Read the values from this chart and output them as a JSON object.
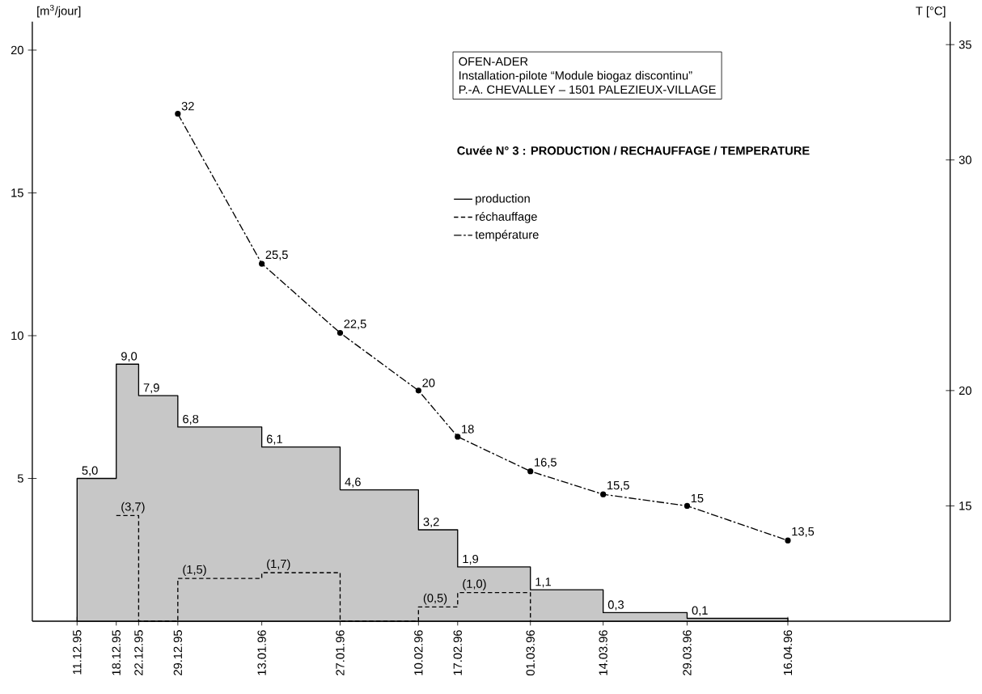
{
  "chart_data": {
    "type": "area",
    "title": "**Cuvée N° 3 :  PRODUCTION / RECHAUFFAGE / TEMPERATURE**",
    "ylabel": "[m$^{3}$/jour]",
    "y2label": "T [°C]",
    "annotations": [
      "OFEN-ADER",
      "Installation-pilote “Module biogaz discontinu”",
      "P.-A. CHEVALLEY – 1501 PALEZIEUX-VILLAGE"
    ],
    "xlim": [
      "1995-12-03",
      "1996-05-15"
    ],
    "xticks": [
      {
        "value": "1995-12-11",
        "label": "11.12.95"
      },
      {
        "value": "1995-12-18",
        "label": "18.12.95"
      },
      {
        "value": "1995-12-22",
        "label": "22.12.95"
      },
      {
        "value": "1995-12-29",
        "label": "29.12.95"
      },
      {
        "value": "1996-01-13",
        "label": "13.01.96"
      },
      {
        "value": "1996-01-27",
        "label": "27.01.96"
      },
      {
        "value": "1996-02-10",
        "label": "10.02.96"
      },
      {
        "value": "1996-02-17",
        "label": "17.02.96"
      },
      {
        "value": "1996-03-01",
        "label": "01.03.96"
      },
      {
        "value": "1996-03-14",
        "label": "14.03.96"
      },
      {
        "value": "1996-03-29",
        "label": "29.03.96"
      },
      {
        "value": "1996-04-16",
        "label": "16.04.96"
      }
    ],
    "ylim": [
      0,
      21
    ],
    "yticks": [
      5,
      10,
      15,
      20
    ],
    "y2lim": [
      10,
      36
    ],
    "y2ticks": [
      15,
      20,
      30,
      35
    ],
    "legend": "top right",
    "series": [
      {
        "name": "production",
        "color": "#000000",
        "line_style": "solid",
        "x": [
          "1995-12-11",
          "1995-12-18",
          "1995-12-22",
          "1995-12-29",
          "1996-01-13",
          "1996-01-27",
          "1996-02-10",
          "1996-02-17",
          "1996-03-01",
          "1996-03-14",
          "1996-03-29",
          "1996-04-16"
        ],
        "values": [
          5.0,
          9.0,
          7.9,
          6.8,
          6.1,
          4.6,
          3.2,
          1.9,
          1.1,
          0.3,
          0.1,
          0
        ],
        "value_labels": [
          "5,0",
          "9,0",
          "7,9",
          "6,8",
          "6,1",
          "4,6",
          "3,2",
          "1,9",
          "1,1",
          "0,3",
          "0,1",
          null
        ]
      },
      {
        "name": "réchauffage",
        "type": "step",
        "color": "#000000",
        "line_style": "dashed",
        "x": [
          "1995-12-18",
          "1995-12-22",
          "1995-12-29",
          "1996-01-13",
          "1996-01-27",
          "1996-02-10",
          "1996-02-17",
          "1996-03-01"
        ],
        "values": [
          3.7,
          0,
          1.5,
          1.7,
          0,
          0.5,
          1.0,
          0
        ],
        "value_labels": [
          "(3,7)",
          null,
          "(1,5)",
          "(1,7)",
          null,
          "(0,5)",
          "(1,0)",
          null
        ]
      },
      {
        "name": "température",
        "type": "line",
        "axis": "y2",
        "color": "#000000",
        "line_style": "dashdot",
        "marker": "circle",
        "x": [
          "1995-12-29",
          "1996-01-13",
          "1996-01-27",
          "1996-02-10",
          "1996-02-17",
          "1996-03-01",
          "1996-03-14",
          "1996-03-29",
          "1996-04-16"
        ],
        "values": [
          32,
          25.5,
          22.5,
          20,
          18,
          16.5,
          15.5,
          15,
          13.5
        ],
        "value_labels": [
          "32",
          "25,5",
          "22,5",
          "20",
          "18",
          "16,5",
          "15,5",
          "15",
          "13,5"
        ]
      }
    ]
  }
}
